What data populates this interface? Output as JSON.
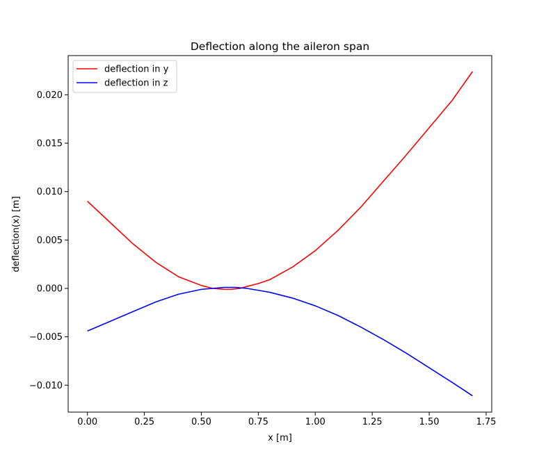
{
  "chart_data": {
    "type": "line",
    "title": "Deflection along the aileron span",
    "xlabel": "x [m]",
    "ylabel": "deflection(x) [m]",
    "xlim": [
      -0.0845,
      1.7745
    ],
    "ylim": [
      -0.01278,
      0.02405
    ],
    "xticks": [
      0.0,
      0.25,
      0.5,
      0.75,
      1.0,
      1.25,
      1.5,
      1.75
    ],
    "xtick_labels": [
      "0.00",
      "0.25",
      "0.50",
      "0.75",
      "1.00",
      "1.25",
      "1.50",
      "1.75"
    ],
    "yticks": [
      -0.01,
      -0.005,
      0.0,
      0.005,
      0.01,
      0.015,
      0.02
    ],
    "ytick_labels": [
      "−0.010",
      "−0.005",
      "0.000",
      "0.005",
      "0.010",
      "0.015",
      "0.020"
    ],
    "grid": false,
    "legend_position": "top-left",
    "series": [
      {
        "name": "deflection in y",
        "color": "#ff0000",
        "x": [
          0.0,
          0.1,
          0.2,
          0.3,
          0.4,
          0.5,
          0.55,
          0.6,
          0.63,
          0.67,
          0.7,
          0.75,
          0.8,
          0.9,
          1.0,
          1.1,
          1.2,
          1.3,
          1.4,
          1.5,
          1.6,
          1.69
        ],
        "y": [
          0.009,
          0.0068,
          0.0046,
          0.0027,
          0.0012,
          0.0003,
          0.0,
          -0.0001,
          -0.0001,
          0.0,
          0.0002,
          0.0005,
          0.0009,
          0.0022,
          0.0039,
          0.006,
          0.0084,
          0.0111,
          0.0138,
          0.0166,
          0.0194,
          0.0224
        ]
      },
      {
        "name": "deflection in z",
        "color": "#0000ff",
        "x": [
          0.0,
          0.1,
          0.2,
          0.3,
          0.4,
          0.5,
          0.55,
          0.6,
          0.65,
          0.7,
          0.75,
          0.8,
          0.9,
          1.0,
          1.1,
          1.2,
          1.3,
          1.4,
          1.5,
          1.6,
          1.69
        ],
        "y": [
          -0.0044,
          -0.0034,
          -0.0024,
          -0.0014,
          -0.0006,
          -0.0001,
          0.0,
          0.0001,
          0.0001,
          0.0,
          -0.0002,
          -0.0004,
          -0.001,
          -0.0018,
          -0.0028,
          -0.004,
          -0.0053,
          -0.0067,
          -0.0082,
          -0.0097,
          -0.0111
        ]
      }
    ]
  }
}
